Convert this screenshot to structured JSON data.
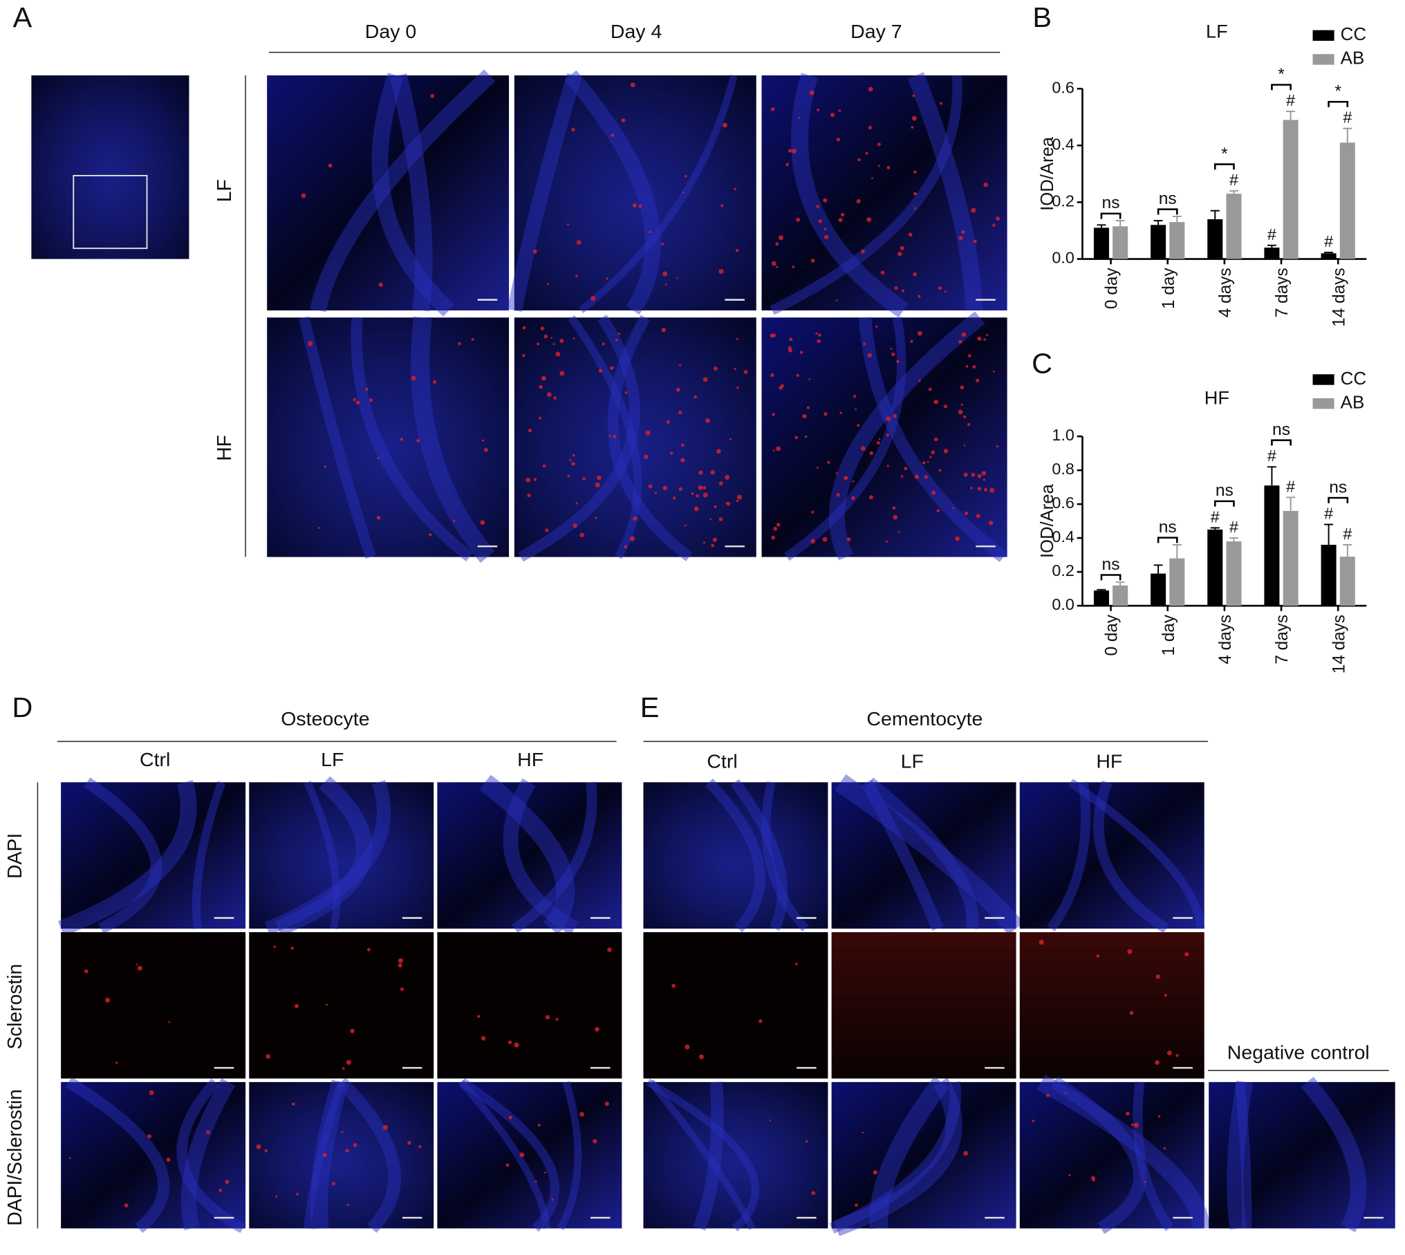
{
  "panel_labels": [
    "A",
    "B",
    "C",
    "D",
    "E"
  ],
  "panel_a": {
    "columns": [
      "Day 0",
      "Day 4",
      "Day 7"
    ],
    "rows": [
      "LF",
      "HF"
    ]
  },
  "panel_d": {
    "title": "Osteocyte",
    "columns": [
      "Ctrl",
      "LF",
      "HF"
    ],
    "rows": [
      "DAPI",
      "Sclerostin",
      "DAPI/Sclerostin"
    ]
  },
  "panel_e": {
    "title": "Cementocyte",
    "columns": [
      "Ctrl",
      "LF",
      "HF"
    ]
  },
  "negative_control": "Negative control",
  "chart_data": [
    {
      "type": "bar",
      "title": "LF",
      "y_label": "IOD/Area",
      "categories": [
        "0 day",
        "1 day",
        "4 days",
        "7 days",
        "14 days"
      ],
      "series": [
        {
          "name": "CC",
          "color": "#000000",
          "values": [
            0.11,
            0.12,
            0.14,
            0.04,
            0.02
          ],
          "errors": [
            0.01,
            0.015,
            0.03,
            0.008,
            0.003
          ],
          "markers": [
            null,
            null,
            null,
            "#",
            "#"
          ]
        },
        {
          "name": "AB",
          "color": "#999999",
          "values": [
            0.115,
            0.13,
            0.23,
            0.49,
            0.41
          ],
          "errors": [
            0.02,
            0.02,
            0.01,
            0.03,
            0.05
          ],
          "markers": [
            null,
            null,
            "#",
            "#",
            "#"
          ]
        }
      ],
      "significance": [
        "ns",
        "ns",
        "*",
        "*",
        "*"
      ],
      "ylim": [
        0,
        0.6
      ],
      "yticks": [
        {
          "value": 0,
          "label": "0.0"
        },
        {
          "value": 0.2,
          "label": "0.2"
        },
        {
          "value": 0.4,
          "label": "0.4"
        },
        {
          "value": 0.6,
          "label": "0.6"
        }
      ],
      "legend": "top-right"
    },
    {
      "type": "bar",
      "title": "HF",
      "y_label": "IOD/Area",
      "categories": [
        "0 day",
        "1 day",
        "4 days",
        "7 days",
        "14 days"
      ],
      "series": [
        {
          "name": "CC",
          "color": "#000000",
          "values": [
            0.09,
            0.19,
            0.45,
            0.71,
            0.36
          ],
          "errors": [
            0.005,
            0.05,
            0.01,
            0.11,
            0.12
          ],
          "markers": [
            null,
            null,
            "#",
            "#",
            "#"
          ]
        },
        {
          "name": "AB",
          "color": "#999999",
          "values": [
            0.12,
            0.28,
            0.38,
            0.56,
            0.29
          ],
          "errors": [
            0.02,
            0.08,
            0.02,
            0.08,
            0.07
          ],
          "markers": [
            null,
            null,
            "#",
            "#",
            "#"
          ]
        }
      ],
      "significance": [
        "ns",
        "ns",
        "ns",
        "ns",
        "ns"
      ],
      "ylim": [
        0,
        1.0
      ],
      "yticks": [
        {
          "value": 0,
          "label": "0.0"
        },
        {
          "value": 0.2,
          "label": "0.2"
        },
        {
          "value": 0.4,
          "label": "0.4"
        },
        {
          "value": 0.6,
          "label": "0.6"
        },
        {
          "value": 0.8,
          "label": "0.8"
        },
        {
          "value": 1.0,
          "label": "1.0"
        }
      ],
      "legend": "top-right"
    }
  ]
}
